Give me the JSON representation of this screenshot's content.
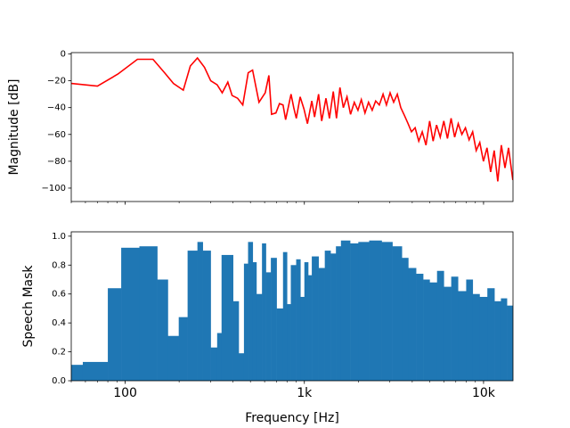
{
  "chart_data": [
    {
      "type": "line",
      "ylabel": "Magnitude [dB]",
      "color": "#ff0000",
      "xscale": "log",
      "xlim": [
        50,
        14600
      ],
      "xticks": [
        100,
        1000,
        10000
      ],
      "ylim": [
        -110,
        1
      ],
      "yticks": [
        {
          "value": 0,
          "label": "0"
        },
        {
          "value": -20,
          "label": "−20"
        },
        {
          "value": -40,
          "label": "−40"
        },
        {
          "value": -60,
          "label": "−60"
        },
        {
          "value": -80,
          "label": "−80"
        },
        {
          "value": -100,
          "label": "−100"
        }
      ],
      "x": [
        50,
        70,
        91,
        117,
        143,
        166,
        186,
        211,
        231,
        253,
        277,
        300,
        326,
        348,
        374,
        395,
        424,
        453,
        486,
        514,
        558,
        605,
        634,
        656,
        694,
        726,
        760,
        786,
        843,
        872,
        902,
        947,
        995,
        1040,
        1100,
        1140,
        1200,
        1250,
        1320,
        1380,
        1450,
        1510,
        1580,
        1650,
        1730,
        1810,
        1900,
        1990,
        2080,
        2180,
        2280,
        2390,
        2500,
        2620,
        2750,
        2870,
        3010,
        3150,
        3300,
        3450,
        3620,
        3790,
        3960,
        4150,
        4350,
        4550,
        4770,
        5000,
        5230,
        5470,
        5730,
        6000,
        6290,
        6590,
        6900,
        7220,
        7570,
        7920,
        8300,
        8690,
        9100,
        9530,
        9980,
        10450,
        10950,
        11470,
        12000,
        12570,
        13170,
        13790,
        14560
      ],
      "values": [
        -22,
        -24,
        -15,
        -4,
        -4,
        -14,
        -22,
        -27,
        -9,
        -3,
        -10,
        -20,
        -23,
        -29,
        -21,
        -31,
        -33,
        -38,
        -14,
        -12,
        -36,
        -29,
        -16,
        -45,
        -44,
        -37,
        -38,
        -49,
        -30,
        -40,
        -48,
        -32,
        -41,
        -52,
        -35,
        -47,
        -30,
        -50,
        -33,
        -48,
        -28,
        -48,
        -25,
        -40,
        -32,
        -45,
        -36,
        -42,
        -34,
        -44,
        -36,
        -42,
        -35,
        -38,
        -30,
        -38,
        -29,
        -36,
        -30,
        -40,
        -46,
        -52,
        -58,
        -55,
        -65,
        -58,
        -68,
        -50,
        -65,
        -53,
        -62,
        -50,
        -63,
        -48,
        -62,
        -52,
        -60,
        -55,
        -64,
        -58,
        -72,
        -66,
        -80,
        -70,
        -88,
        -72,
        -95,
        -68,
        -85,
        -70,
        -94
      ]
    },
    {
      "type": "histogram",
      "xlabel": "Frequency [Hz]",
      "ylabel": "Speech Mask",
      "color": "#1f77b4",
      "xscale": "log",
      "xlim": [
        50,
        14600
      ],
      "xticks": [
        {
          "value": 100,
          "label": "100"
        },
        {
          "value": 1000,
          "label": "1k"
        },
        {
          "value": 10000,
          "label": "10k"
        }
      ],
      "ylim": [
        0,
        1.03
      ],
      "yticks": [
        {
          "value": 0,
          "label": "0.0"
        },
        {
          "value": 0.2,
          "label": "0.2"
        },
        {
          "value": 0.4,
          "label": "0.4"
        },
        {
          "value": 0.6,
          "label": "0.6"
        },
        {
          "value": 0.8,
          "label": "0.8"
        },
        {
          "value": 1,
          "label": "1.0"
        }
      ],
      "bins": [
        50,
        58,
        80,
        95,
        120,
        151,
        173,
        199,
        223,
        253,
        271,
        300,
        326,
        345,
        400,
        430,
        460,
        485,
        515,
        540,
        580,
        610,
        650,
        700,
        760,
        800,
        840,
        900,
        950,
        1000,
        1050,
        1100,
        1200,
        1300,
        1400,
        1500,
        1600,
        1800,
        2000,
        2300,
        2700,
        3100,
        3500,
        3800,
        4200,
        4600,
        5000,
        5500,
        6000,
        6600,
        7200,
        8000,
        8700,
        9500,
        10500,
        11500,
        12500,
        13500,
        14600
      ],
      "values": [
        0.11,
        0.13,
        0.64,
        0.92,
        0.93,
        0.7,
        0.31,
        0.44,
        0.9,
        0.96,
        0.9,
        0.23,
        0.33,
        0.87,
        0.55,
        0.19,
        0.81,
        0.96,
        0.82,
        0.6,
        0.95,
        0.75,
        0.85,
        0.5,
        0.89,
        0.53,
        0.8,
        0.84,
        0.58,
        0.82,
        0.73,
        0.86,
        0.78,
        0.9,
        0.88,
        0.93,
        0.97,
        0.95,
        0.96,
        0.97,
        0.96,
        0.93,
        0.85,
        0.78,
        0.74,
        0.7,
        0.68,
        0.76,
        0.65,
        0.72,
        0.62,
        0.7,
        0.6,
        0.58,
        0.64,
        0.55,
        0.57,
        0.52
      ]
    }
  ]
}
